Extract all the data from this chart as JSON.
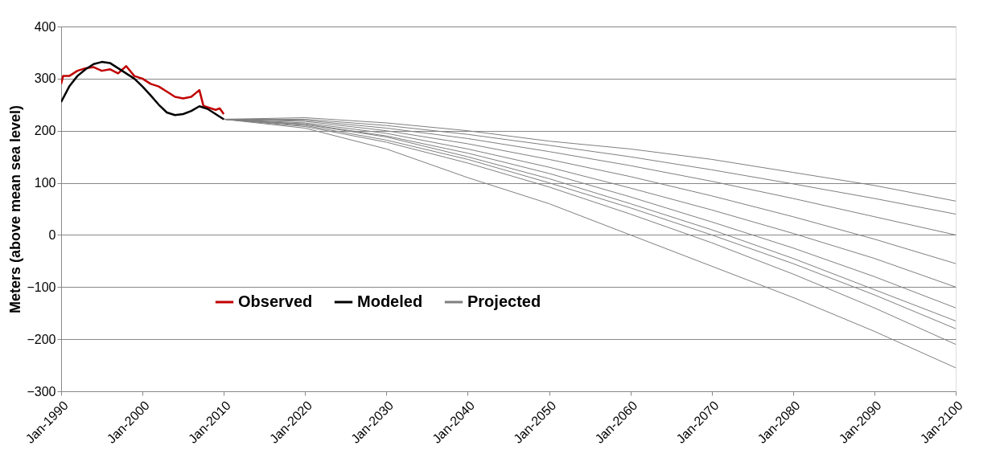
{
  "chart_data": {
    "type": "line",
    "ylabel": "Meters (above mean sea level)",
    "xlim": [
      "1990-01",
      "2100-01"
    ],
    "xticks": [
      {
        "value": "1990-01",
        "label": "Jan-1990"
      },
      {
        "value": "2000-01",
        "label": "Jan-2000"
      },
      {
        "value": "2010-01",
        "label": "Jan-2010"
      },
      {
        "value": "2020-01",
        "label": "Jan-2020"
      },
      {
        "value": "2030-01",
        "label": "Jan-2030"
      },
      {
        "value": "2040-01",
        "label": "Jan-2040"
      },
      {
        "value": "2050-01",
        "label": "Jan-2050"
      },
      {
        "value": "2060-01",
        "label": "Jan-2060"
      },
      {
        "value": "2070-01",
        "label": "Jan-2070"
      },
      {
        "value": "2080-01",
        "label": "Jan-2080"
      },
      {
        "value": "2090-01",
        "label": "Jan-2090"
      },
      {
        "value": "2100-01",
        "label": "Jan-2100"
      }
    ],
    "ylim": [
      -300,
      400
    ],
    "yticks": [
      -300,
      -200,
      -100,
      0,
      100,
      200,
      300,
      400
    ],
    "grid": "y",
    "legend": "bottom",
    "marker": "none",
    "line_style": "solid",
    "series": [
      {
        "name": "Observed",
        "color": "#c00000",
        "x": [
          "1990-01",
          "1990-04",
          "1991-01",
          "1992-01",
          "1993-01",
          "1994-01",
          "1995-01",
          "1996-01",
          "1997-01",
          "1998-01",
          "1999-01",
          "2000-01",
          "2001-01",
          "2002-01",
          "2003-01",
          "2004-01",
          "2005-01",
          "2006-01",
          "2007-01",
          "2007-07",
          "2008-01",
          "2009-01",
          "2009-07",
          "2010-01"
        ],
        "values": [
          290,
          305,
          305,
          315,
          320,
          322,
          315,
          318,
          310,
          324,
          305,
          300,
          290,
          285,
          275,
          265,
          262,
          265,
          278,
          248,
          245,
          240,
          243,
          232
        ]
      },
      {
        "name": "Modeled",
        "color": "#000000",
        "x": [
          "1990-01",
          "1991-01",
          "1992-01",
          "1993-01",
          "1994-01",
          "1995-01",
          "1996-01",
          "1997-01",
          "1998-01",
          "1999-01",
          "2000-01",
          "2001-01",
          "2002-01",
          "2003-01",
          "2004-01",
          "2005-01",
          "2006-01",
          "2007-01",
          "2008-01",
          "2009-01",
          "2010-01"
        ],
        "values": [
          255,
          285,
          305,
          318,
          328,
          332,
          330,
          320,
          310,
          300,
          285,
          268,
          250,
          235,
          230,
          232,
          238,
          247,
          242,
          232,
          222
        ]
      },
      {
        "name": "Projected",
        "color": "#7f7f7f",
        "x": [
          "2010-01",
          "2020-01",
          "2030-01",
          "2040-01",
          "2050-01",
          "2060-01",
          "2070-01",
          "2080-01",
          "2090-01",
          "2100-01"
        ],
        "values": [
          222,
          225,
          215,
          200,
          180,
          165,
          145,
          120,
          95,
          65
        ]
      },
      {
        "color": "#7f7f7f",
        "x": [
          "2010-01",
          "2020-01",
          "2030-01",
          "2040-01",
          "2050-01",
          "2060-01",
          "2070-01",
          "2080-01",
          "2090-01",
          "2100-01"
        ],
        "values": [
          222,
          222,
          210,
          193,
          172,
          150,
          125,
          98,
          70,
          40
        ]
      },
      {
        "color": "#7f7f7f",
        "x": [
          "2010-01",
          "2020-01",
          "2030-01",
          "2040-01",
          "2050-01",
          "2060-01",
          "2070-01",
          "2080-01",
          "2090-01",
          "2100-01"
        ],
        "values": [
          222,
          220,
          205,
          185,
          160,
          133,
          103,
          70,
          35,
          0
        ]
      },
      {
        "color": "#7f7f7f",
        "x": [
          "2010-01",
          "2020-01",
          "2030-01",
          "2040-01",
          "2050-01",
          "2060-01",
          "2070-01",
          "2080-01",
          "2090-01",
          "2100-01"
        ],
        "values": [
          222,
          218,
          200,
          175,
          145,
          112,
          75,
          35,
          -8,
          -55
        ]
      },
      {
        "color": "#7f7f7f",
        "x": [
          "2010-01",
          "2020-01",
          "2030-01",
          "2040-01",
          "2050-01",
          "2060-01",
          "2070-01",
          "2080-01",
          "2090-01",
          "2100-01"
        ],
        "values": [
          222,
          215,
          195,
          165,
          130,
          90,
          48,
          3,
          -45,
          -100
        ]
      },
      {
        "color": "#7f7f7f",
        "x": [
          "2010-01",
          "2020-01",
          "2030-01",
          "2040-01",
          "2050-01",
          "2060-01",
          "2070-01",
          "2080-01",
          "2090-01",
          "2100-01"
        ],
        "values": [
          222,
          213,
          190,
          157,
          118,
          73,
          25,
          -25,
          -80,
          -140
        ]
      },
      {
        "color": "#7f7f7f",
        "x": [
          "2010-01",
          "2020-01",
          "2030-01",
          "2040-01",
          "2050-01",
          "2060-01",
          "2070-01",
          "2080-01",
          "2090-01",
          "2100-01"
        ],
        "values": [
          222,
          212,
          188,
          150,
          108,
          60,
          10,
          -45,
          -105,
          -165
        ]
      },
      {
        "color": "#7f7f7f",
        "x": [
          "2010-01",
          "2020-01",
          "2030-01",
          "2040-01",
          "2050-01",
          "2060-01",
          "2070-01",
          "2080-01",
          "2090-01",
          "2100-01"
        ],
        "values": [
          222,
          210,
          182,
          145,
          100,
          52,
          0,
          -55,
          -115,
          -180
        ]
      },
      {
        "color": "#7f7f7f",
        "x": [
          "2010-01",
          "2020-01",
          "2030-01",
          "2040-01",
          "2050-01",
          "2060-01",
          "2070-01",
          "2080-01",
          "2090-01",
          "2100-01"
        ],
        "values": [
          222,
          208,
          178,
          138,
          92,
          40,
          -15,
          -75,
          -140,
          -210
        ]
      },
      {
        "color": "#7f7f7f",
        "x": [
          "2010-01",
          "2020-01",
          "2030-01",
          "2040-01",
          "2050-01",
          "2060-01",
          "2070-01",
          "2080-01",
          "2090-01",
          "2100-01"
        ],
        "values": [
          222,
          205,
          165,
          110,
          60,
          0,
          -60,
          -120,
          -185,
          -255
        ]
      }
    ]
  }
}
